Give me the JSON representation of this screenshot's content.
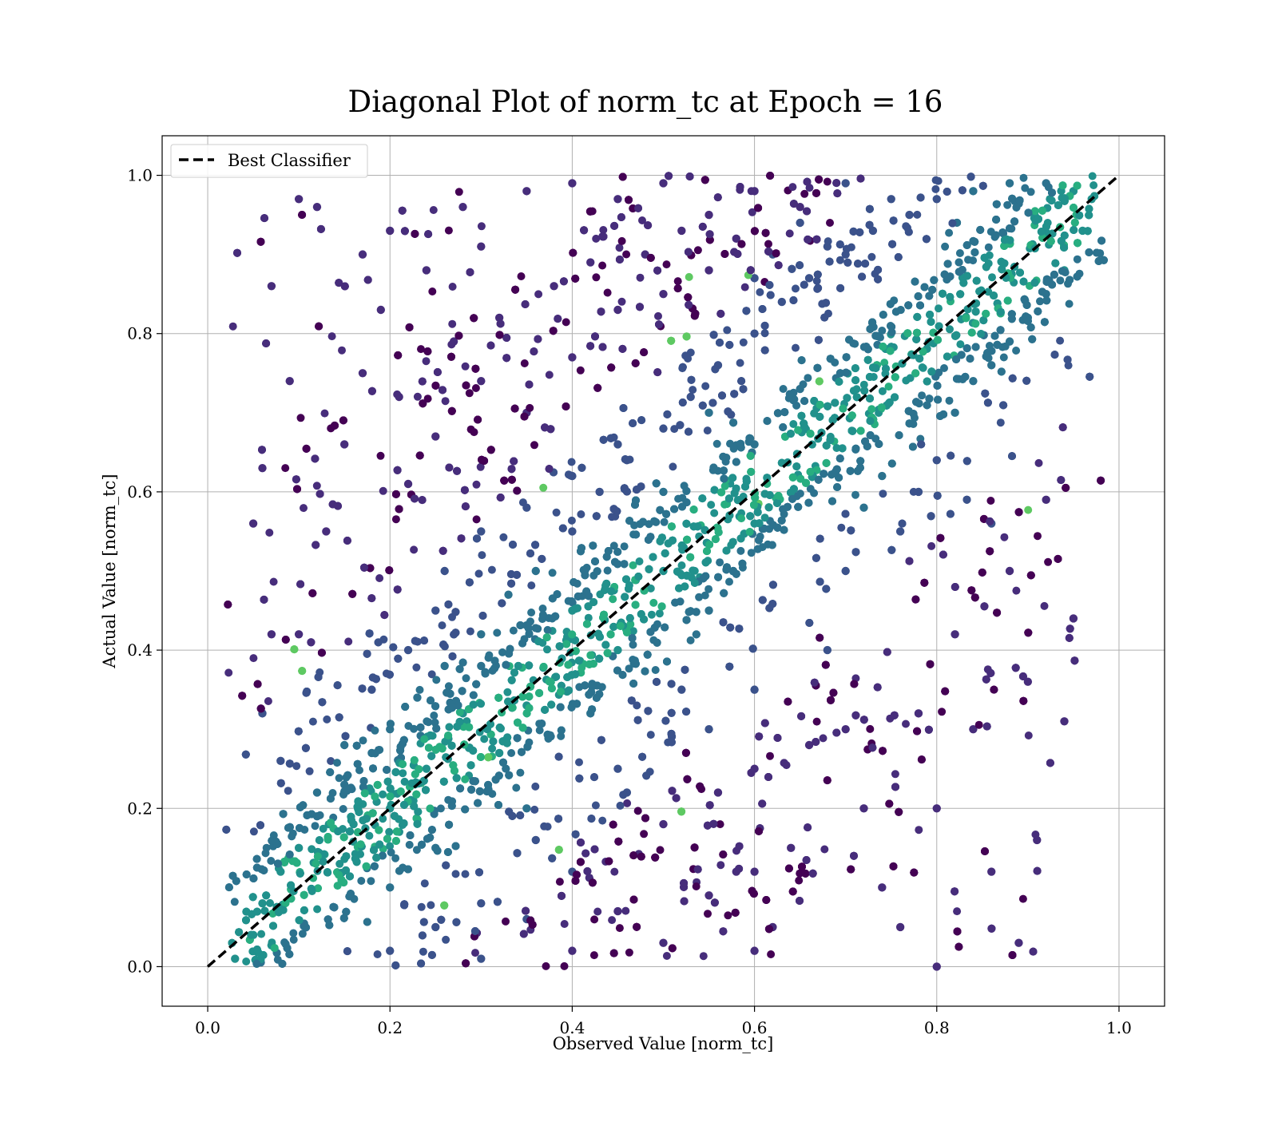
{
  "chart_data": {
    "type": "scatter",
    "title": "Diagonal Plot of norm_tc at Epoch = 16",
    "xlabel": "Observed Value [norm_tc]",
    "ylabel": "Actual Value [norm_tc]",
    "xlim": [
      -0.05,
      1.05
    ],
    "ylim": [
      -0.05,
      1.05
    ],
    "xticks": [
      "0.0",
      "0.2",
      "0.4",
      "0.6",
      "0.8",
      "1.0"
    ],
    "yticks": [
      "0.0",
      "0.2",
      "0.4",
      "0.6",
      "0.8",
      "1.0"
    ],
    "grid": true,
    "legend": {
      "placement": "upper-left",
      "entries": [
        {
          "label": "Best Classifier",
          "style": "dashed",
          "color": "#000000"
        }
      ]
    },
    "reference_line": {
      "label": "Best Classifier",
      "x": [
        0.0,
        1.0
      ],
      "y": [
        0.0,
        1.0
      ]
    },
    "colormap": [
      "#440154",
      "#472d7b",
      "#3b528b",
      "#2c728e",
      "#21918c",
      "#28ae80",
      "#5ec962",
      "#addc30"
    ],
    "series": [
      {
        "marker": "circle",
        "note_density": "approximate reconstruction of a dense point cloud",
        "points": [
          [
            0.03,
            0.01
          ],
          [
            0.05,
            0.04
          ],
          [
            0.06,
            0.08
          ],
          [
            0.08,
            0.12
          ],
          [
            0.1,
            0.15
          ],
          [
            0.12,
            0.19
          ],
          [
            0.15,
            0.23
          ],
          [
            0.18,
            0.27
          ],
          [
            0.2,
            0.3
          ],
          [
            0.23,
            0.34
          ],
          [
            0.26,
            0.38
          ],
          [
            0.3,
            0.42
          ],
          [
            0.33,
            0.47
          ],
          [
            0.36,
            0.5
          ],
          [
            0.4,
            0.55
          ],
          [
            0.43,
            0.6
          ],
          [
            0.46,
            0.64
          ],
          [
            0.5,
            0.68
          ],
          [
            0.53,
            0.72
          ],
          [
            0.56,
            0.76
          ],
          [
            0.6,
            0.8
          ],
          [
            0.63,
            0.84
          ],
          [
            0.66,
            0.87
          ],
          [
            0.7,
            0.9
          ],
          [
            0.73,
            0.93
          ],
          [
            0.77,
            0.95
          ],
          [
            0.8,
            0.97
          ],
          [
            0.84,
            0.98
          ],
          [
            0.88,
            0.99
          ],
          [
            0.92,
            0.99
          ],
          [
            0.95,
            0.98
          ],
          [
            0.97,
            0.97
          ],
          [
            0.1,
            0.97
          ],
          [
            0.12,
            0.96
          ],
          [
            0.17,
            0.9
          ],
          [
            0.2,
            0.93
          ],
          [
            0.24,
            0.88
          ],
          [
            0.28,
            0.96
          ],
          [
            0.3,
            0.91
          ],
          [
            0.35,
            0.98
          ],
          [
            0.4,
            0.99
          ],
          [
            0.45,
            0.97
          ],
          [
            0.5,
            0.99
          ],
          [
            0.55,
            0.95
          ],
          [
            0.6,
            0.98
          ],
          [
            0.65,
            0.96
          ],
          [
            0.7,
            0.99
          ],
          [
            0.75,
            0.97
          ],
          [
            0.07,
            0.86
          ],
          [
            0.09,
            0.74
          ],
          [
            0.06,
            0.63
          ],
          [
            0.05,
            0.56
          ],
          [
            0.07,
            0.42
          ],
          [
            0.08,
            0.26
          ],
          [
            0.06,
            0.32
          ],
          [
            0.1,
            0.42
          ],
          [
            0.13,
            0.55
          ],
          [
            0.15,
            0.66
          ],
          [
            0.17,
            0.75
          ],
          [
            0.19,
            0.83
          ],
          [
            0.21,
            0.72
          ],
          [
            0.22,
            0.61
          ],
          [
            0.25,
            0.67
          ],
          [
            0.27,
            0.79
          ],
          [
            0.3,
            0.74
          ],
          [
            0.32,
            0.82
          ],
          [
            0.35,
            0.7
          ],
          [
            0.38,
            0.86
          ],
          [
            0.4,
            0.77
          ],
          [
            0.42,
            0.89
          ],
          [
            0.45,
            0.83
          ],
          [
            0.48,
            0.9
          ],
          [
            0.5,
            0.85
          ],
          [
            0.52,
            0.93
          ],
          [
            0.55,
            0.88
          ],
          [
            0.58,
            0.92
          ],
          [
            0.6,
            0.87
          ],
          [
            0.62,
            0.9
          ],
          [
            0.65,
            0.94
          ],
          [
            0.68,
            0.91
          ],
          [
            0.3,
            0.55
          ],
          [
            0.35,
            0.58
          ],
          [
            0.4,
            0.62
          ],
          [
            0.45,
            0.66
          ],
          [
            0.5,
            0.6
          ],
          [
            0.55,
            0.7
          ],
          [
            0.6,
            0.66
          ],
          [
            0.65,
            0.73
          ],
          [
            0.25,
            0.45
          ],
          [
            0.3,
            0.38
          ],
          [
            0.35,
            0.33
          ],
          [
            0.4,
            0.45
          ],
          [
            0.45,
            0.4
          ],
          [
            0.5,
            0.5
          ],
          [
            0.55,
            0.45
          ],
          [
            0.6,
            0.56
          ],
          [
            0.2,
            0.1
          ],
          [
            0.25,
            0.15
          ],
          [
            0.3,
            0.08
          ],
          [
            0.35,
            0.2
          ],
          [
            0.4,
            0.12
          ],
          [
            0.45,
            0.25
          ],
          [
            0.5,
            0.18
          ],
          [
            0.55,
            0.3
          ],
          [
            0.2,
            0.02
          ],
          [
            0.25,
            0.05
          ],
          [
            0.3,
            0.01
          ],
          [
            0.35,
            0.06
          ],
          [
            0.4,
            0.02
          ],
          [
            0.45,
            0.07
          ],
          [
            0.5,
            0.03
          ],
          [
            0.55,
            0.09
          ],
          [
            0.6,
            0.02
          ],
          [
            0.6,
            0.12
          ],
          [
            0.6,
            0.25
          ],
          [
            0.6,
            0.35
          ],
          [
            0.62,
            0.05
          ],
          [
            0.64,
            0.15
          ],
          [
            0.66,
            0.28
          ],
          [
            0.68,
            0.4
          ],
          [
            0.7,
            0.5
          ],
          [
            0.72,
            0.58
          ],
          [
            0.74,
            0.62
          ],
          [
            0.76,
            0.55
          ],
          [
            0.78,
            0.6
          ],
          [
            0.8,
            0.64
          ],
          [
            0.82,
            0.7
          ],
          [
            0.84,
            0.74
          ],
          [
            0.86,
            0.76
          ],
          [
            0.88,
            0.79
          ],
          [
            0.9,
            0.82
          ],
          [
            0.92,
            0.85
          ],
          [
            0.94,
            0.88
          ],
          [
            0.96,
            0.93
          ],
          [
            0.7,
            0.3
          ],
          [
            0.72,
            0.2
          ],
          [
            0.74,
            0.1
          ],
          [
            0.76,
            0.05
          ],
          [
            0.78,
            0.32
          ],
          [
            0.8,
            0.2
          ],
          [
            0.82,
            0.42
          ],
          [
            0.84,
            0.3
          ],
          [
            0.86,
            0.12
          ],
          [
            0.88,
            0.5
          ],
          [
            0.9,
            0.36
          ],
          [
            0.92,
            0.59
          ],
          [
            0.94,
            0.31
          ],
          [
            0.95,
            0.44
          ],
          [
            0.91,
            0.16
          ],
          [
            0.89,
            0.03
          ],
          [
            0.86,
            0.56
          ],
          [
            0.8,
            0.0
          ],
          [
            0.15,
            0.28
          ],
          [
            0.18,
            0.35
          ],
          [
            0.22,
            0.4
          ],
          [
            0.26,
            0.5
          ],
          [
            0.28,
            0.32
          ],
          [
            0.32,
            0.27
          ],
          [
            0.36,
            0.16
          ],
          [
            0.42,
            0.32
          ],
          [
            0.46,
            0.22
          ],
          [
            0.52,
            0.35
          ],
          [
            0.56,
            0.22
          ],
          [
            0.58,
            0.12
          ],
          [
            0.12,
            0.22
          ],
          [
            0.16,
            0.18
          ],
          [
            0.2,
            0.2
          ],
          [
            0.24,
            0.25
          ]
        ]
      }
    ]
  }
}
